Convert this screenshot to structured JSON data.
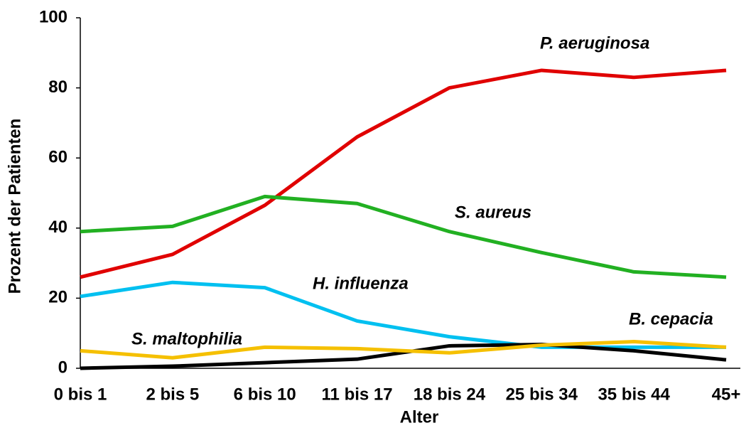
{
  "chart_data": {
    "type": "line",
    "x_label": "Alter",
    "y_label": "Prozent der Patienten",
    "categories": [
      "0 bis 1",
      "2 bis 5",
      "6 bis 10",
      "11 bis 17",
      "18 bis 24",
      "25 bis 34",
      "35 bis 44",
      "45+"
    ],
    "series": [
      {
        "name": "P. aeruginosa",
        "color": "#e00000",
        "values": [
          26,
          32.5,
          46.5,
          66,
          80,
          85,
          83,
          85
        ]
      },
      {
        "name": "S. aureus",
        "color": "#22b022",
        "values": [
          39,
          40.5,
          49,
          47,
          39,
          33,
          27.5,
          26
        ]
      },
      {
        "name": "H. influenza",
        "color": "#00c0f0",
        "values": [
          20.5,
          24.5,
          23,
          13.5,
          9,
          6,
          6,
          6
        ]
      },
      {
        "name": "B. cepacia",
        "color": "#000000",
        "values": [
          0,
          0.6,
          1.6,
          2.6,
          6.4,
          6.8,
          5,
          2.4
        ]
      },
      {
        "name": "S. maltophilia",
        "color": "#f5c000",
        "values": [
          5,
          3,
          6,
          5.6,
          4.4,
          6.6,
          7.6,
          6
        ]
      }
    ],
    "ylim": [
      0,
      100
    ],
    "yticks": [
      0,
      20,
      40,
      60,
      80,
      100
    ],
    "grid": false
  }
}
